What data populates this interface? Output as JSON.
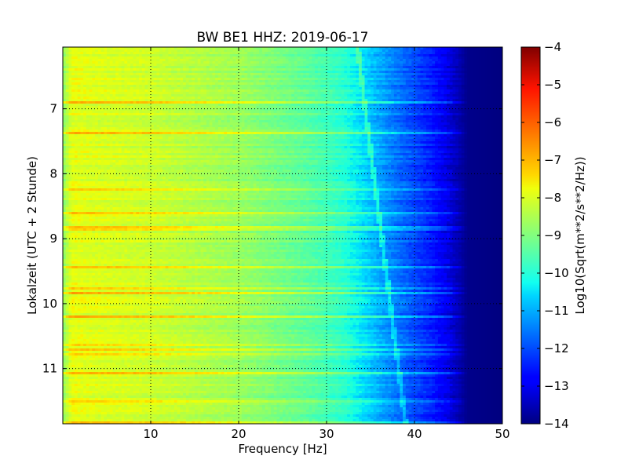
{
  "chart_data": {
    "type": "heatmap",
    "title": "BW BE1 HHZ: 2019-06-17",
    "xlabel": "Frequency [Hz]",
    "ylabel": "Lokalzeit (UTC + 2 Stunde)",
    "xlim": [
      0,
      50
    ],
    "ylim_hours": [
      6.05,
      11.85
    ],
    "x_ticks": [
      10,
      20,
      30,
      40,
      50
    ],
    "y_ticks": [
      7,
      8,
      9,
      10,
      11
    ],
    "grid": true,
    "colorscale": "jet",
    "colorbar": {
      "label": "Log10(Sqrt(m**2/s**2/Hz))",
      "range": [
        -14,
        -4
      ],
      "ticks": [
        -4,
        -5,
        -6,
        -7,
        -8,
        -9,
        -10,
        -11,
        -12,
        -13,
        -14
      ]
    },
    "level_profile_by_frequency": {
      "frequency_hz": [
        0,
        1,
        3,
        10,
        20,
        28,
        32,
        35,
        38,
        42,
        44,
        46,
        50
      ],
      "log10_psd": [
        -8.8,
        -7.7,
        -7.8,
        -8.0,
        -8.6,
        -9.4,
        -10.0,
        -10.8,
        -11.6,
        -12.5,
        -13.2,
        -13.9,
        -14.0
      ]
    },
    "annotations": {
      "drifting_spectral_line_hz": [
        [
          6.05,
          33.5
        ],
        [
          11.85,
          39.0
        ]
      ]
    }
  }
}
